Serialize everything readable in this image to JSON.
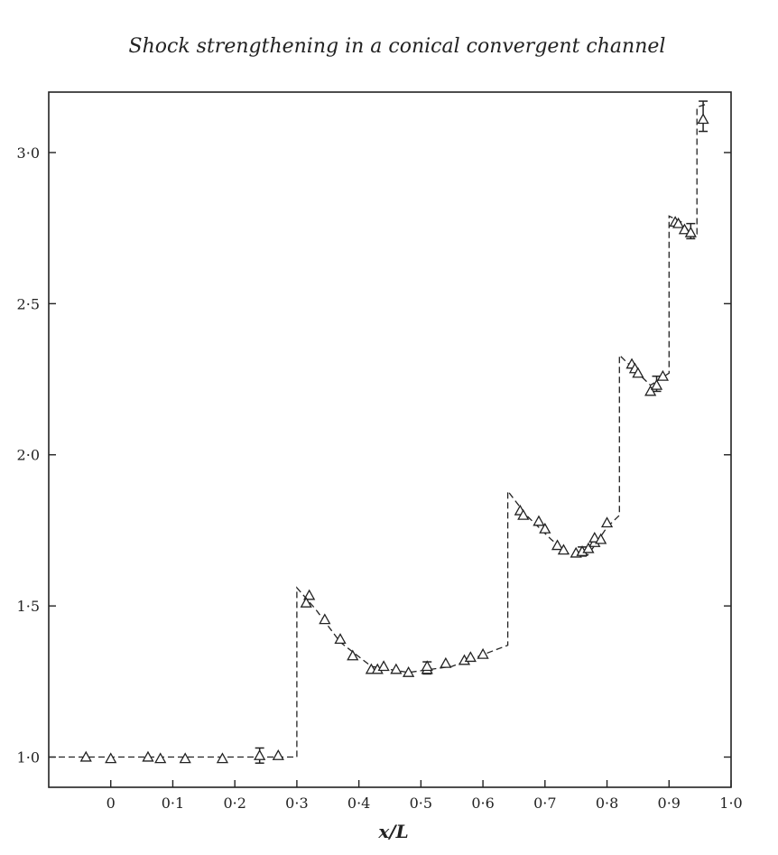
{
  "chart_data": {
    "type": "scatter",
    "title": "Shock strengthening in a conical convergent channel",
    "xlabel": "x/L",
    "ylabel": "",
    "xlim": [
      -0.1,
      1.0
    ],
    "ylim": [
      0.9,
      3.2
    ],
    "x_ticks": [
      0,
      0.1,
      0.2,
      0.3,
      0.4,
      0.5,
      0.6,
      0.7,
      0.8,
      0.9,
      1.0
    ],
    "x_tick_labels": [
      "0",
      "0·1",
      "0·2",
      "0·3",
      "0·4",
      "0·5",
      "0·6",
      "0·7",
      "0·8",
      "0·9",
      "1·0"
    ],
    "y_ticks": [
      1.0,
      1.5,
      2.0,
      2.5,
      3.0
    ],
    "y_tick_labels": [
      "1·0",
      "1·5",
      "2·0",
      "2·5",
      "3·0"
    ],
    "grid": false,
    "series": [
      {
        "marker": "open-triangle",
        "x": [
          -0.04,
          0.0,
          0.06,
          0.08,
          0.12,
          0.18,
          0.24,
          0.27,
          0.32,
          0.315,
          0.345,
          0.37,
          0.39,
          0.42,
          0.43,
          0.44,
          0.46,
          0.48,
          0.51,
          0.51,
          0.54,
          0.57,
          0.58,
          0.6,
          0.66,
          0.665,
          0.69,
          0.7,
          0.72,
          0.73,
          0.75,
          0.76,
          0.77,
          0.78,
          0.78,
          0.79,
          0.8,
          0.84,
          0.845,
          0.85,
          0.87,
          0.88,
          0.89,
          0.91,
          0.915,
          0.925,
          0.935,
          0.955
        ],
        "y": [
          1.0,
          0.995,
          1.0,
          0.995,
          0.995,
          0.995,
          1.005,
          1.005,
          1.535,
          1.51,
          1.455,
          1.39,
          1.335,
          1.29,
          1.29,
          1.3,
          1.29,
          1.28,
          1.29,
          1.3,
          1.31,
          1.32,
          1.33,
          1.34,
          1.815,
          1.8,
          1.78,
          1.755,
          1.7,
          1.685,
          1.675,
          1.68,
          1.69,
          1.71,
          1.725,
          1.72,
          1.775,
          2.3,
          2.285,
          2.27,
          2.21,
          2.23,
          2.26,
          2.77,
          2.765,
          2.745,
          2.735,
          3.11
        ],
        "error_bars": [
          {
            "x": 0.24,
            "y": 1.005,
            "low": 0.98,
            "high": 1.03
          },
          {
            "x": 0.51,
            "y": 1.295,
            "low": 1.275,
            "high": 1.315
          },
          {
            "x": 0.76,
            "y": 1.68,
            "low": 1.665,
            "high": 1.695
          },
          {
            "x": 0.88,
            "y": 2.235,
            "low": 2.21,
            "high": 2.26
          },
          {
            "x": 0.935,
            "y": 2.74,
            "low": 2.715,
            "high": 2.765
          },
          {
            "x": 0.955,
            "y": 3.12,
            "low": 3.07,
            "high": 3.17
          }
        ]
      },
      {
        "line_style": "dashed",
        "x": [
          -0.1,
          0.3,
          0.3,
          0.33,
          0.37,
          0.42,
          0.48,
          0.55,
          0.64,
          0.64,
          0.67,
          0.71,
          0.74,
          0.77,
          0.8,
          0.82,
          0.82,
          0.84,
          0.87,
          0.9,
          0.9,
          0.92,
          0.94,
          0.945,
          0.945,
          0.96
        ],
        "y": [
          1.0,
          1.0,
          1.56,
          1.49,
          1.38,
          1.3,
          1.28,
          1.3,
          1.37,
          1.88,
          1.8,
          1.72,
          1.67,
          1.67,
          1.76,
          1.8,
          2.33,
          2.29,
          2.23,
          2.27,
          2.79,
          2.77,
          2.72,
          2.73,
          3.15,
          3.16
        ]
      }
    ]
  }
}
